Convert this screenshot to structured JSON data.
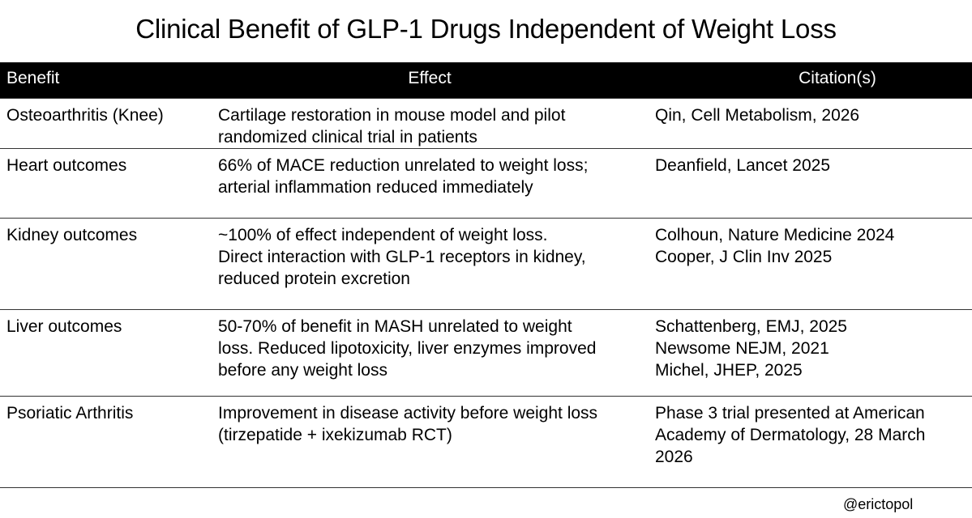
{
  "title": "Clinical Benefit of GLP-1 Drugs Independent of Weight Loss",
  "columns": {
    "benefit": "Benefit",
    "effect": "Effect",
    "citation": "Citation(s)"
  },
  "rows": [
    {
      "benefit": "Osteoarthritis (Knee)",
      "effect": [
        "Cartilage restoration in mouse model and pilot",
        "randomized clinical trial in patients"
      ],
      "citation": [
        "Qin, Cell Metabolism, 2026"
      ]
    },
    {
      "benefit": "Heart outcomes",
      "effect": [
        "66% of MACE reduction unrelated to weight loss;",
        "arterial inflammation reduced immediately"
      ],
      "citation": [
        "Deanfield, Lancet 2025"
      ]
    },
    {
      "benefit": "Kidney outcomes",
      "effect": [
        "~100% of effect independent of weight loss.",
        "Direct interaction with GLP-1 receptors in kidney,",
        "reduced protein excretion"
      ],
      "citation": [
        "Colhoun, Nature Medicine 2024",
        "Cooper, J Clin Inv 2025"
      ]
    },
    {
      "benefit": "Liver outcomes",
      "effect": [
        "50-70% of benefit in MASH unrelated to weight",
        "loss. Reduced lipotoxicity, liver enzymes improved",
        "before any weight loss"
      ],
      "citation": [
        "Schattenberg, EMJ, 2025",
        "Newsome NEJM, 2021",
        "Michel, JHEP, 2025"
      ]
    },
    {
      "benefit": "Psoriatic Arthritis",
      "effect": [
        "Improvement in disease activity before weight loss",
        "(tirzepatide + ixekizumab RCT)"
      ],
      "citation": [
        "Phase 3 trial presented at American",
        "Academy of Dermatology, 28 March",
        "2026"
      ]
    }
  ],
  "footer": "@erictopol"
}
